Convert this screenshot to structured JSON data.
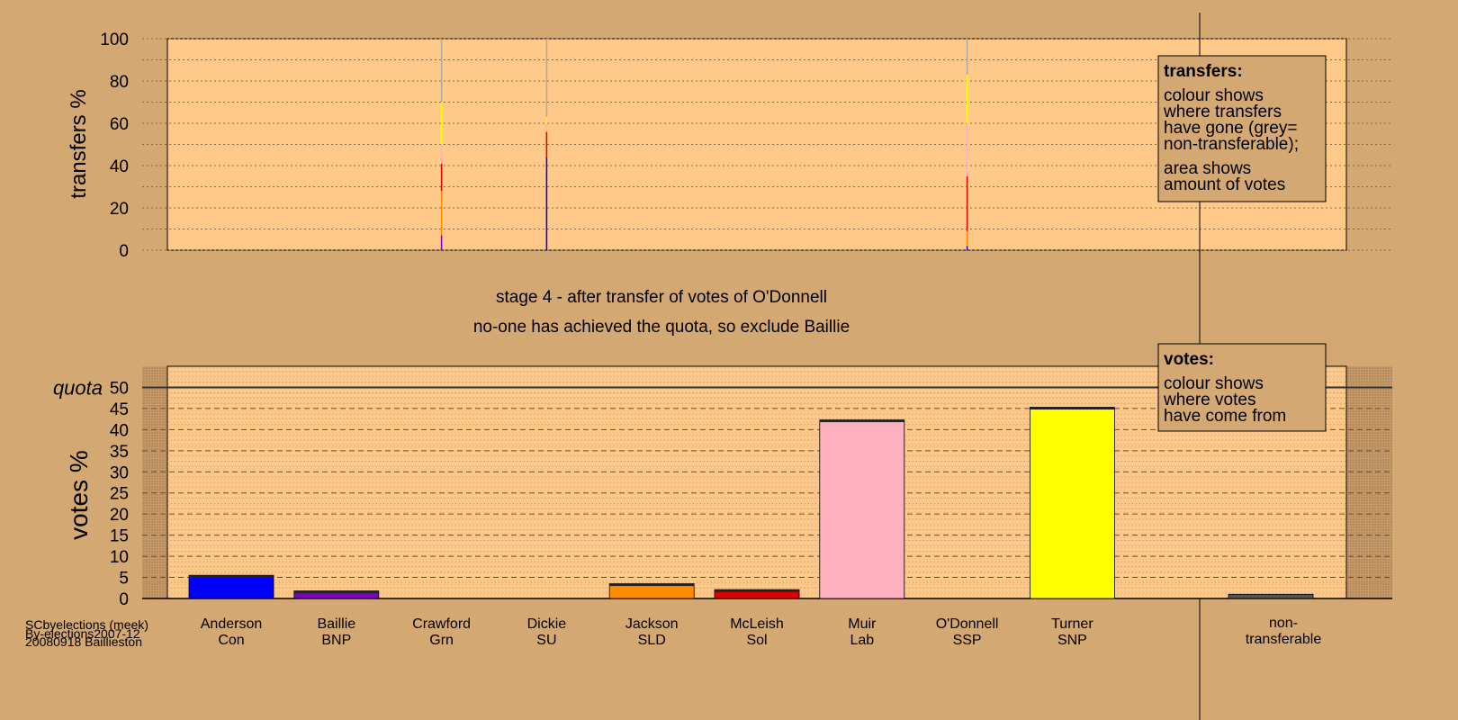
{
  "colors": {
    "page_bg": "#d4a873",
    "plot_bg": "#ffc98a",
    "Con": "#0000ff",
    "BNP": "#8000c0",
    "SLD": "#ff8c00",
    "Sol": "#e00000",
    "Lab": "#ffb0c0",
    "SNP": "#ffff00",
    "non-transferable": "#555555",
    "grey": "#aaaaaa"
  },
  "chart_data": [
    {
      "type": "bar",
      "name": "transfers",
      "ylabel": "transfers %",
      "ylim": [
        0,
        100
      ],
      "yticks": [
        0,
        20,
        40,
        60,
        80,
        100
      ],
      "grid": true,
      "legend": {
        "title": "transfers:",
        "lines_a": [
          "colour shows",
          "where transfers",
          "have gone (grey=",
          "non-transferable);"
        ],
        "lines_b": [
          "area shows",
          "amount of votes"
        ]
      },
      "columns": [
        {
          "candidate": "Crawford",
          "segments": [
            {
              "party": "BNP",
              "from": 0,
              "to": 7
            },
            {
              "party": "SLD",
              "from": 7,
              "to": 28
            },
            {
              "party": "Sol",
              "from": 28,
              "to": 41
            },
            {
              "party": "Lab",
              "from": 41,
              "to": 50
            },
            {
              "party": "SNP",
              "from": 50,
              "to": 70
            },
            {
              "party": "grey",
              "from": 70,
              "to": 100
            }
          ]
        },
        {
          "candidate": "Dickie",
          "segments": [
            {
              "party": "Con",
              "from": 0,
              "to": 44
            },
            {
              "party": "Sol",
              "from": 44,
              "to": 56
            },
            {
              "party": "Lab",
              "from": 56,
              "to": 60
            },
            {
              "party": "SNP",
              "from": 60,
              "to": 63
            },
            {
              "party": "grey",
              "from": 63,
              "to": 100
            }
          ]
        },
        {
          "candidate": "O'Donnell",
          "segments": [
            {
              "party": "Con",
              "from": 0,
              "to": 2
            },
            {
              "party": "SLD",
              "from": 2,
              "to": 9
            },
            {
              "party": "Sol",
              "from": 9,
              "to": 35
            },
            {
              "party": "Lab",
              "from": 35,
              "to": 60
            },
            {
              "party": "SNP",
              "from": 60,
              "to": 83
            },
            {
              "party": "grey",
              "from": 83,
              "to": 100
            }
          ]
        }
      ]
    },
    {
      "type": "bar",
      "name": "votes",
      "ylabel": "votes %",
      "ylim": [
        0,
        55
      ],
      "yticks": [
        0,
        5,
        10,
        15,
        20,
        25,
        30,
        35,
        40,
        45,
        50
      ],
      "quota": 50,
      "quota_label": "quota",
      "grid": true,
      "legend": {
        "title": "votes:",
        "lines": [
          "colour shows",
          "where votes",
          "have come from"
        ]
      },
      "categories": [
        {
          "name": "Anderson",
          "party": "Con",
          "value": 5.5
        },
        {
          "name": "Baillie",
          "party": "BNP",
          "value": 1.8
        },
        {
          "name": "Crawford",
          "party": "Grn",
          "value": 0
        },
        {
          "name": "Dickie",
          "party": "SU",
          "value": 0
        },
        {
          "name": "Jackson",
          "party": "SLD",
          "value": 3.5
        },
        {
          "name": "McLeish",
          "party": "Sol",
          "value": 2.1
        },
        {
          "name": "Muir",
          "party": "Lab",
          "value": 42.3
        },
        {
          "name": "O'Donnell",
          "party": "SSP",
          "value": 0
        },
        {
          "name": "Turner",
          "party": "SNP",
          "value": 45.3
        }
      ],
      "nontransferable": {
        "label_1": "non-",
        "label_2": "transferable",
        "value": 1.0
      }
    }
  ],
  "stage_title": "stage 4 - after transfer of votes of O'Donnell",
  "stage_subtitle": "no-one has achieved the quota, so exclude Baillie",
  "footer": {
    "line1": "SCbyelections (meek)",
    "line2": "By-elections2007-12",
    "line3": "20080918 Baillieston"
  }
}
